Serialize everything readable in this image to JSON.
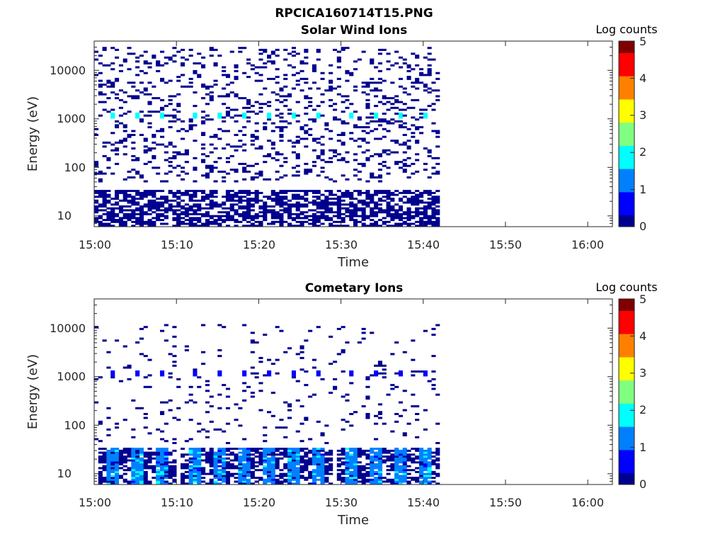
{
  "figure": {
    "title": "RPCICA160714T15.PNG"
  },
  "colormap": [
    "#00008f",
    "#0000ff",
    "#0080ff",
    "#00ffff",
    "#80ff80",
    "#ffff00",
    "#ff8000",
    "#ff0000",
    "#800000"
  ],
  "chart_data": [
    {
      "type": "heatmap",
      "title": "Solar Wind Ions",
      "xlabel": "Time",
      "ylabel": "Energy (eV)",
      "colorbar_label": "Log counts",
      "x_ticks": [
        "15:00",
        "15:10",
        "15:20",
        "15:30",
        "15:40",
        "15:50",
        "16:00"
      ],
      "xlim": [
        "15:00",
        "16:03"
      ],
      "data_x_range": [
        "15:00",
        "15:42"
      ],
      "y_ticks": [
        "10",
        "100",
        "1000",
        "10000"
      ],
      "y_scale": "log",
      "ylim": [
        6,
        40000
      ],
      "colorbar_ticks": [
        "0",
        "1",
        "2",
        "3",
        "4",
        "5"
      ],
      "clim": [
        0,
        5
      ],
      "features": [
        {
          "description": "sparse background counts",
          "energy_range_eV": [
            50,
            30000
          ],
          "log_counts": 0
        },
        {
          "description": "dense low-energy counts",
          "energy_range_eV": [
            6,
            35
          ],
          "log_counts": 0
        },
        {
          "description": "periodic peak near 1000 eV",
          "energy_eV": 1150,
          "times": [
            "15:02",
            "15:05",
            "15:08",
            "15:12",
            "15:15",
            "15:18",
            "15:21",
            "15:24",
            "15:27",
            "15:31",
            "15:34",
            "15:37",
            "15:40"
          ],
          "log_counts": 1.7
        }
      ]
    },
    {
      "type": "heatmap",
      "title": "Cometary Ions",
      "xlabel": "Time",
      "ylabel": "Energy (eV)",
      "colorbar_label": "Log counts",
      "x_ticks": [
        "15:00",
        "15:10",
        "15:20",
        "15:30",
        "15:40",
        "15:50",
        "16:00"
      ],
      "xlim": [
        "15:00",
        "16:03"
      ],
      "data_x_range": [
        "15:00",
        "15:42"
      ],
      "y_ticks": [
        "10",
        "100",
        "1000",
        "10000"
      ],
      "y_scale": "log",
      "ylim": [
        6,
        40000
      ],
      "colorbar_ticks": [
        "0",
        "1",
        "2",
        "3",
        "4",
        "5"
      ],
      "clim": [
        0,
        5
      ],
      "features": [
        {
          "description": "sparse background counts",
          "energy_range_eV": [
            40,
            12000
          ],
          "log_counts": 0
        },
        {
          "description": "periodic bursts near 1000 eV",
          "energy_eV": 1150,
          "times": [
            "15:02",
            "15:05",
            "15:08",
            "15:12",
            "15:15",
            "15:18",
            "15:21",
            "15:24",
            "15:27",
            "15:31",
            "15:34",
            "15:37",
            "15:40"
          ],
          "log_counts": 0.8
        },
        {
          "description": "periodic low-energy enhancement",
          "energy_range_eV": [
            6,
            35
          ],
          "times": [
            "15:02",
            "15:05",
            "15:08",
            "15:12",
            "15:15",
            "15:18",
            "15:21",
            "15:24",
            "15:27",
            "15:31",
            "15:34",
            "15:37",
            "15:40"
          ],
          "log_counts": 1.5
        }
      ]
    }
  ]
}
